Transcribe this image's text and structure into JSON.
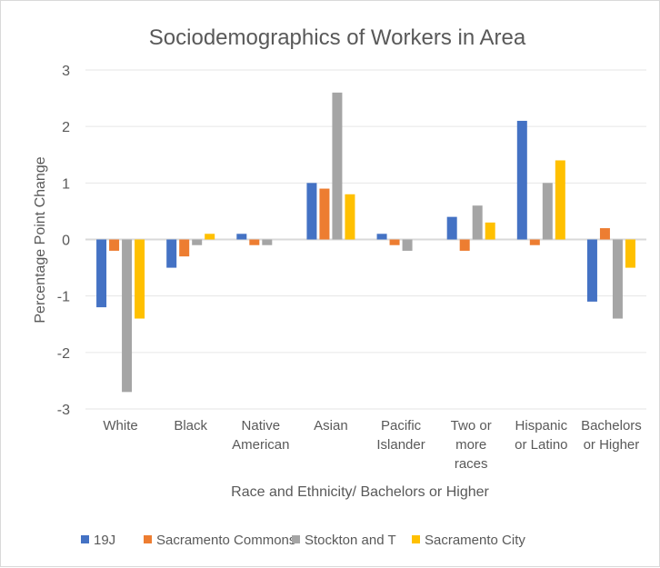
{
  "chart_data": {
    "type": "bar",
    "title": "Sociodemographics of Workers in Area",
    "xlabel": "Race and Ethnicity/ Bachelors or Higher",
    "ylabel": "Percentage Point Change",
    "ylim": [
      -3,
      3
    ],
    "yticks": [
      3,
      2,
      1,
      0,
      -1,
      -2,
      -3
    ],
    "grid": true,
    "legend_position": "bottom",
    "categories": [
      [
        "White"
      ],
      [
        "Black"
      ],
      [
        "Native",
        "American"
      ],
      [
        "Asian"
      ],
      [
        "Pacific",
        "Islander"
      ],
      [
        "Two or",
        "more",
        "races"
      ],
      [
        "Hispanic",
        "or Latino"
      ],
      [
        "Bachelors",
        "or Higher"
      ]
    ],
    "series": [
      {
        "name": "19J",
        "color": "#4472C4",
        "values": [
          -1.2,
          -0.5,
          0.1,
          1.0,
          0.1,
          0.4,
          2.1,
          -1.1
        ]
      },
      {
        "name": "Sacramento Commons",
        "color": "#ED7D31",
        "values": [
          -0.2,
          -0.3,
          -0.1,
          0.9,
          -0.1,
          -0.2,
          -0.1,
          0.2
        ]
      },
      {
        "name": "Stockton and T",
        "color": "#A5A5A5",
        "values": [
          -2.7,
          -0.1,
          -0.1,
          2.6,
          -0.2,
          0.6,
          1.0,
          -1.4
        ]
      },
      {
        "name": "Sacramento City",
        "color": "#FFC000",
        "values": [
          -1.4,
          0.1,
          0.0,
          0.8,
          0.0,
          0.3,
          1.4,
          -0.5
        ]
      }
    ]
  }
}
